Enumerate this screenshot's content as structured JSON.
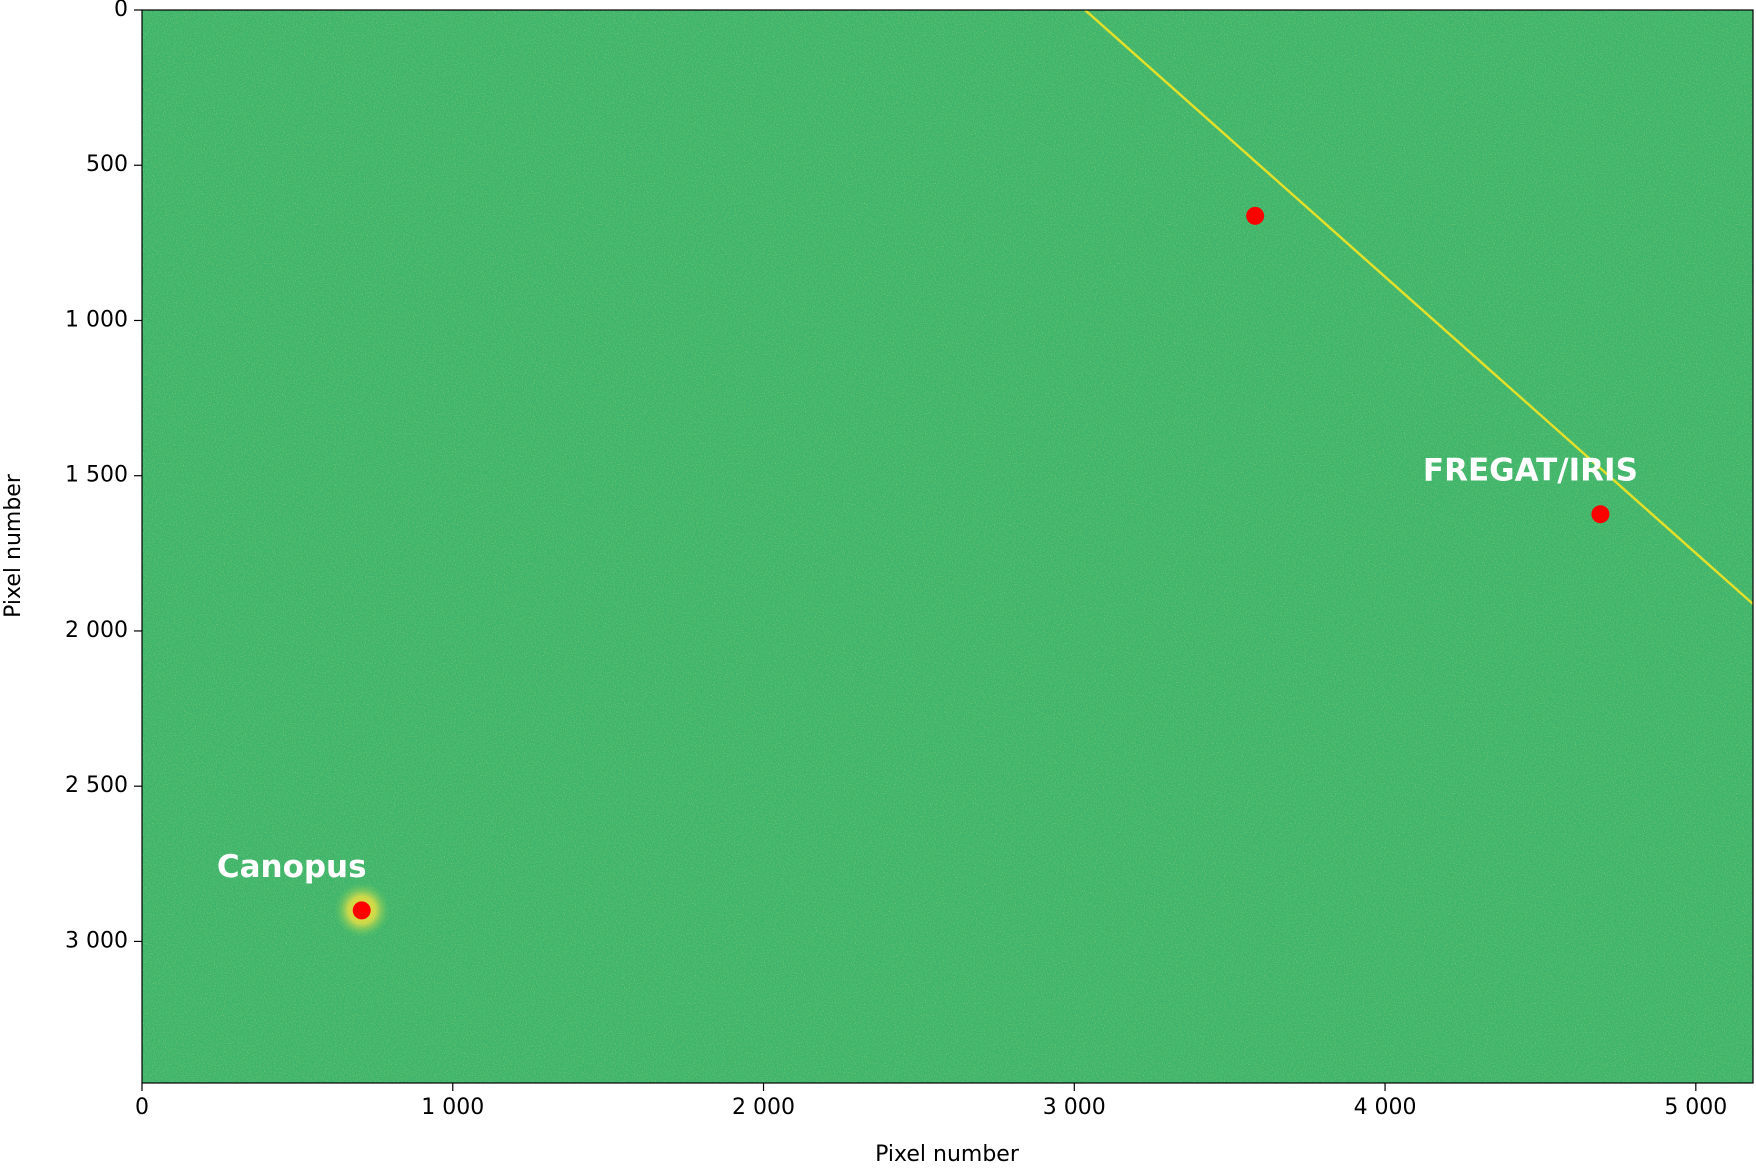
{
  "chart_data": {
    "type": "scatter",
    "x_label": "Pixel number",
    "y_label": "Pixel number",
    "x": [
      707,
      3582,
      4693
    ],
    "values": [
      2900,
      663,
      1624
    ],
    "labels": [
      "Canopus",
      null,
      "FREGAT/IRIS"
    ],
    "color": "#ff0000",
    "xlim": [
      0,
      5184
    ],
    "ylim": [
      3456,
      0
    ],
    "xticks": [
      0,
      {
        "value": 1000,
        "label": "1 000"
      },
      {
        "value": 2000,
        "label": "2 000"
      },
      {
        "value": 3000,
        "label": "3 000"
      },
      {
        "value": 4000,
        "label": "4 000"
      },
      {
        "value": 5000,
        "label": "5 000"
      }
    ],
    "yticks": [
      0,
      500,
      {
        "value": 1000,
        "label": "1 000"
      },
      {
        "value": 1500,
        "label": "1 500"
      },
      {
        "value": 2000,
        "label": "2 000"
      },
      {
        "value": 2500,
        "label": "2 500"
      },
      {
        "value": 3000,
        "label": "3 000"
      }
    ]
  }
}
